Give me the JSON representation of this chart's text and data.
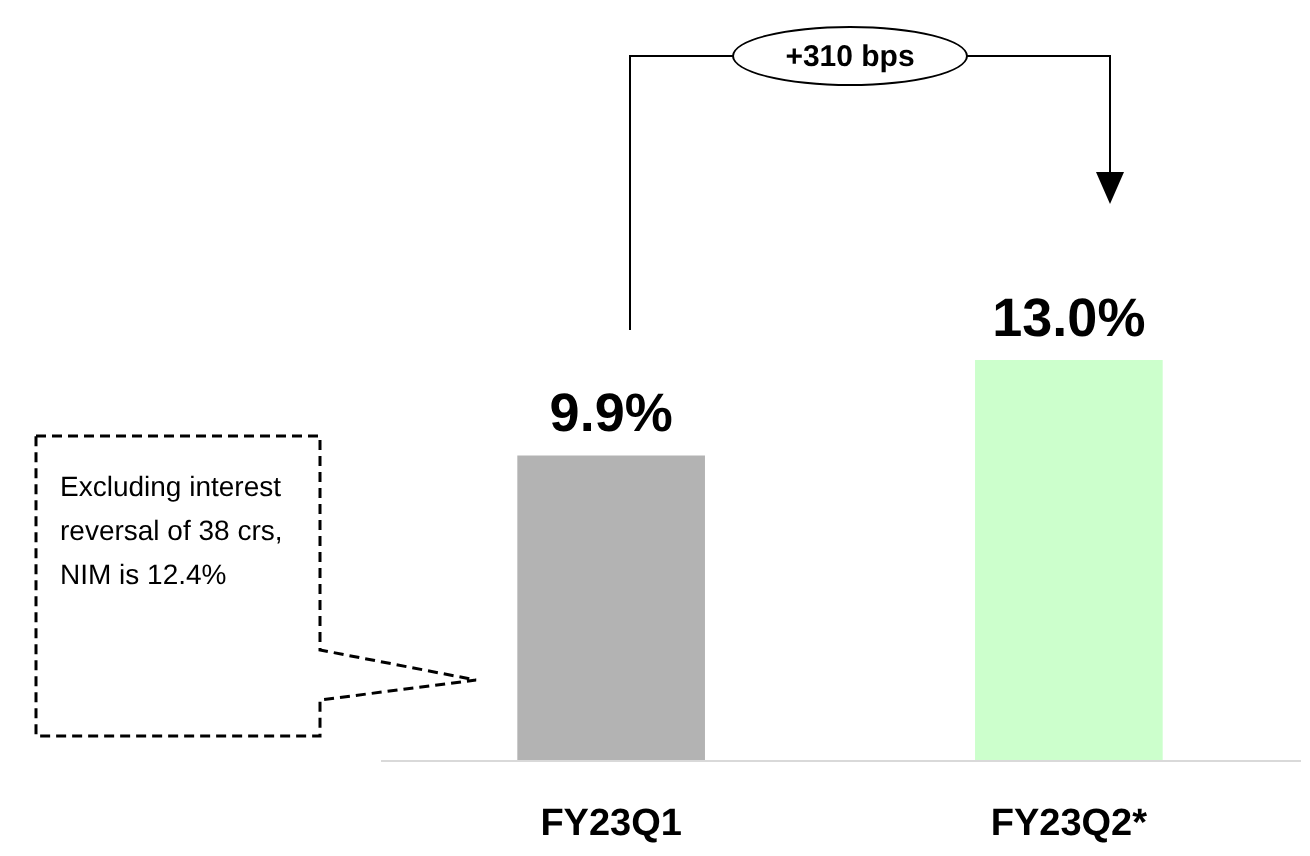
{
  "chart_data": {
    "type": "bar",
    "categories": [
      "FY23Q1",
      "FY23Q2*"
    ],
    "values": [
      9.9,
      13.0
    ],
    "colors": [
      "#b3b3b3",
      "#ccffcc"
    ],
    "value_labels": [
      "9.9%",
      "13.0%"
    ],
    "annotations": [
      "+310 bps",
      "Excluding interest reversal of 38 crs, NIM is 12.4%"
    ]
  }
}
